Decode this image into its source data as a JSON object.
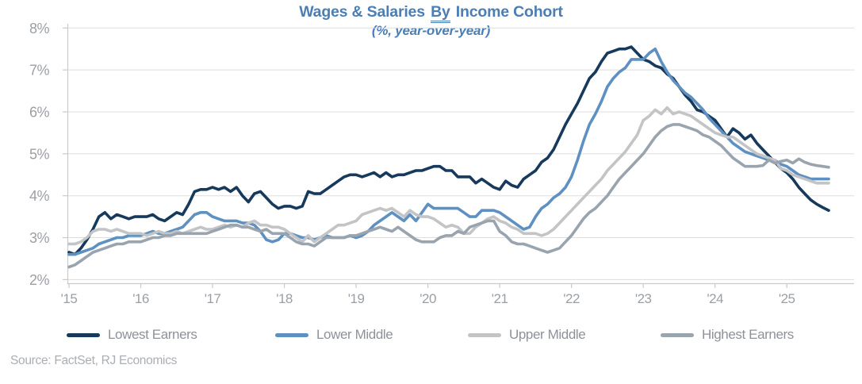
{
  "title": {
    "pre": "Wages & Salaries ",
    "underlined": "By",
    "post": " Income Cohort"
  },
  "subtitle": "(%, year-over-year)",
  "source": "Source: FactSet, RJ Economics",
  "colors": {
    "title_blue": "#4A7EB5",
    "axis_text": "#9B9FA5",
    "gridline": "#DDDEE0",
    "axis_line": "#C8CACC"
  },
  "chart_data": {
    "type": "line",
    "title": "Wages & Salaries By Income Cohort",
    "subtitle": "(%, year-over-year)",
    "x_unit": "month",
    "x_range": [
      "2015-01",
      "2025-08"
    ],
    "x_tick_labels": [
      "'15",
      "'16",
      "'17",
      "'18",
      "'19",
      "'20",
      "'21",
      "'22",
      "'23",
      "'24",
      "'25"
    ],
    "y_tick_labels": [
      "2%",
      "3%",
      "4%",
      "5%",
      "6%",
      "7%",
      "8%"
    ],
    "ylim": [
      2,
      8
    ],
    "grid": true,
    "legend_position": "bottom",
    "series": [
      {
        "name": "Lowest Earners",
        "color": "#16395C",
        "values": [
          2.65,
          2.6,
          2.75,
          2.95,
          3.2,
          3.5,
          3.6,
          3.45,
          3.55,
          3.5,
          3.45,
          3.5,
          3.5,
          3.5,
          3.55,
          3.45,
          3.4,
          3.5,
          3.6,
          3.55,
          3.8,
          4.1,
          4.15,
          4.15,
          4.2,
          4.15,
          4.2,
          4.1,
          4.2,
          4.0,
          3.85,
          4.05,
          4.1,
          3.95,
          3.8,
          3.7,
          3.75,
          3.75,
          3.7,
          3.75,
          4.1,
          4.05,
          4.05,
          4.15,
          4.25,
          4.35,
          4.45,
          4.5,
          4.5,
          4.45,
          4.5,
          4.55,
          4.45,
          4.55,
          4.45,
          4.5,
          4.5,
          4.55,
          4.6,
          4.6,
          4.65,
          4.7,
          4.7,
          4.6,
          4.6,
          4.45,
          4.45,
          4.45,
          4.3,
          4.4,
          4.3,
          4.2,
          4.15,
          4.35,
          4.25,
          4.2,
          4.4,
          4.5,
          4.6,
          4.8,
          4.9,
          5.1,
          5.4,
          5.7,
          5.95,
          6.2,
          6.5,
          6.8,
          6.95,
          7.2,
          7.4,
          7.45,
          7.5,
          7.5,
          7.55,
          7.4,
          7.25,
          7.2,
          7.1,
          7.05,
          6.9,
          6.8,
          6.6,
          6.4,
          6.25,
          6.05,
          6.0,
          5.9,
          5.8,
          5.6,
          5.4,
          5.6,
          5.5,
          5.35,
          5.45,
          5.25,
          5.1,
          4.95,
          4.8,
          4.65,
          4.55,
          4.4,
          4.2,
          4.05,
          3.9,
          3.8,
          3.72,
          3.65
        ]
      },
      {
        "name": "Lower Middle",
        "color": "#5E90C1",
        "values": [
          2.6,
          2.6,
          2.65,
          2.7,
          2.75,
          2.85,
          2.9,
          2.95,
          3.0,
          3.0,
          3.05,
          3.05,
          3.05,
          3.1,
          3.15,
          3.1,
          3.1,
          3.15,
          3.2,
          3.25,
          3.4,
          3.55,
          3.6,
          3.6,
          3.5,
          3.45,
          3.4,
          3.4,
          3.4,
          3.35,
          3.35,
          3.3,
          3.15,
          2.95,
          2.9,
          2.95,
          3.1,
          3.1,
          3.05,
          3.0,
          3.0,
          2.95,
          3.0,
          3.05,
          3.0,
          3.0,
          3.0,
          3.05,
          3.0,
          3.05,
          3.15,
          3.3,
          3.4,
          3.5,
          3.6,
          3.5,
          3.4,
          3.55,
          3.4,
          3.6,
          3.8,
          3.7,
          3.7,
          3.7,
          3.7,
          3.7,
          3.6,
          3.5,
          3.5,
          3.65,
          3.65,
          3.65,
          3.6,
          3.5,
          3.4,
          3.3,
          3.2,
          3.25,
          3.5,
          3.7,
          3.8,
          3.95,
          4.05,
          4.2,
          4.45,
          4.85,
          5.3,
          5.7,
          5.95,
          6.25,
          6.6,
          6.8,
          6.95,
          7.05,
          7.25,
          7.25,
          7.25,
          7.4,
          7.5,
          7.2,
          6.95,
          6.75,
          6.6,
          6.45,
          6.35,
          6.2,
          6.05,
          5.85,
          5.7,
          5.55,
          5.4,
          5.25,
          5.15,
          5.05,
          5.0,
          4.95,
          4.9,
          4.85,
          4.85,
          4.75,
          4.7,
          4.6,
          4.5,
          4.45,
          4.4,
          4.4,
          4.4,
          4.4
        ]
      },
      {
        "name": "Upper Middle",
        "color": "#C2C4C6",
        "values": [
          2.85,
          2.85,
          2.9,
          3.0,
          3.15,
          3.2,
          3.2,
          3.15,
          3.2,
          3.15,
          3.1,
          3.1,
          3.1,
          3.05,
          3.1,
          3.15,
          3.1,
          3.1,
          3.15,
          3.1,
          3.15,
          3.2,
          3.25,
          3.2,
          3.2,
          3.25,
          3.3,
          3.25,
          3.3,
          3.25,
          3.35,
          3.4,
          3.3,
          3.3,
          3.25,
          3.25,
          3.2,
          3.1,
          3.0,
          2.9,
          3.05,
          2.9,
          3.0,
          3.1,
          3.2,
          3.3,
          3.3,
          3.35,
          3.4,
          3.55,
          3.6,
          3.65,
          3.7,
          3.65,
          3.7,
          3.6,
          3.5,
          3.65,
          3.55,
          3.5,
          3.5,
          3.45,
          3.35,
          3.25,
          3.3,
          3.25,
          3.1,
          3.1,
          3.25,
          3.35,
          3.45,
          3.5,
          3.4,
          3.35,
          3.25,
          3.2,
          3.1,
          3.1,
          3.1,
          3.05,
          3.1,
          3.2,
          3.35,
          3.5,
          3.65,
          3.8,
          3.95,
          4.1,
          4.25,
          4.4,
          4.6,
          4.75,
          4.9,
          5.05,
          5.25,
          5.45,
          5.8,
          5.9,
          6.05,
          5.95,
          6.1,
          5.95,
          6.0,
          5.95,
          5.9,
          5.8,
          5.7,
          5.6,
          5.5,
          5.45,
          5.4,
          5.4,
          5.3,
          5.2,
          5.1,
          5.0,
          4.95,
          4.9,
          4.85,
          4.65,
          4.6,
          4.5,
          4.45,
          4.4,
          4.35,
          4.3,
          4.3,
          4.3
        ]
      },
      {
        "name": "Highest Earners",
        "color": "#9AA4AE",
        "values": [
          2.3,
          2.35,
          2.45,
          2.55,
          2.65,
          2.7,
          2.75,
          2.8,
          2.85,
          2.85,
          2.9,
          2.9,
          2.9,
          2.95,
          3.0,
          3.0,
          3.05,
          3.05,
          3.1,
          3.1,
          3.1,
          3.1,
          3.1,
          3.1,
          3.15,
          3.2,
          3.25,
          3.3,
          3.3,
          3.25,
          3.25,
          3.2,
          3.15,
          3.2,
          3.1,
          3.1,
          3.1,
          3.0,
          2.9,
          2.85,
          2.85,
          2.8,
          2.9,
          3.0,
          3.0,
          3.0,
          3.0,
          3.05,
          3.05,
          3.1,
          3.15,
          3.2,
          3.25,
          3.2,
          3.15,
          3.25,
          3.15,
          3.05,
          2.95,
          2.9,
          2.9,
          2.9,
          3.0,
          3.05,
          3.05,
          3.15,
          3.1,
          3.25,
          3.3,
          3.35,
          3.4,
          3.4,
          3.15,
          3.05,
          2.9,
          2.85,
          2.85,
          2.8,
          2.75,
          2.7,
          2.65,
          2.7,
          2.75,
          2.9,
          3.05,
          3.25,
          3.45,
          3.6,
          3.7,
          3.85,
          4.0,
          4.2,
          4.4,
          4.55,
          4.7,
          4.85,
          5.0,
          5.2,
          5.4,
          5.55,
          5.65,
          5.7,
          5.7,
          5.65,
          5.6,
          5.55,
          5.45,
          5.4,
          5.3,
          5.2,
          5.05,
          4.9,
          4.8,
          4.7,
          4.7,
          4.7,
          4.72,
          4.85,
          4.78,
          4.82,
          4.85,
          4.78,
          4.88,
          4.8,
          4.75,
          4.72,
          4.7,
          4.68
        ]
      }
    ]
  }
}
